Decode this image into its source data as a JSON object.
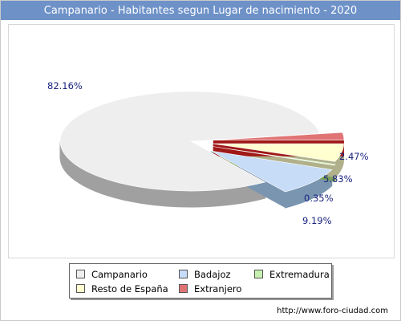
{
  "header": {
    "title": "Campanario - Habitantes segun Lugar de nacimiento - 2020"
  },
  "chart_data": {
    "type": "pie",
    "title": "Campanario - Habitantes segun Lugar de nacimiento - 2020",
    "series": [
      {
        "name": "Campanario",
        "value": 82.16,
        "label": "82.16%",
        "color": "#eeeeee",
        "side_color": "#a0a0a0"
      },
      {
        "name": "Badajoz",
        "value": 9.19,
        "label": "9.19%",
        "color": "#c7dcf7",
        "side_color": "#7a95b0"
      },
      {
        "name": "Extremadura",
        "value": 0.35,
        "label": "0.35%",
        "color": "#c6f0b0",
        "side_color": "#7aa05a"
      },
      {
        "name": "Resto de España",
        "value": 5.83,
        "label": "5.83%",
        "color": "#ffffcf",
        "side_color": "#b0b08a"
      },
      {
        "name": "Extranjero",
        "value": 2.47,
        "label": "2.47%",
        "color": "#e07474",
        "side_color": "#a01818"
      }
    ],
    "legend_position": "bottom"
  },
  "footer": {
    "source": "http://www.foro-ciudad.com"
  }
}
